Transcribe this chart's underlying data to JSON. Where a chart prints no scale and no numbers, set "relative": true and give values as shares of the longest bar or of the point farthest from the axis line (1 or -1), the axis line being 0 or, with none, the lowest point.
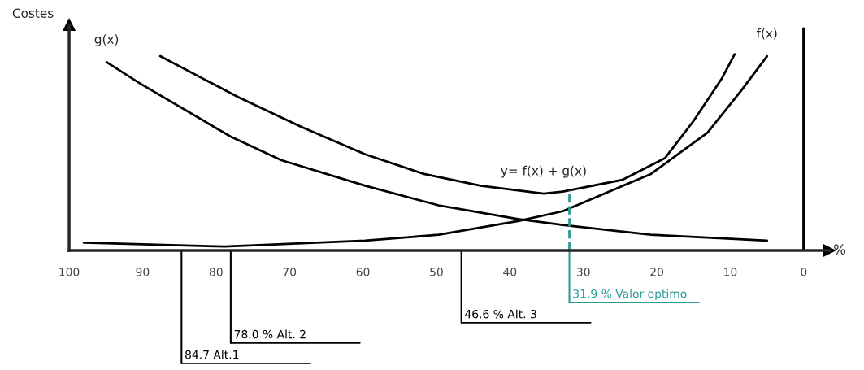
{
  "chart_data": {
    "type": "line",
    "ylabel": "Costes",
    "xlabel": "%",
    "relative": true,
    "xlim": [
      100,
      -3.5
    ],
    "xticks": [
      100,
      90,
      80,
      70,
      60,
      50,
      40,
      30,
      20,
      10,
      0
    ],
    "series": [
      {
        "color": "#000000",
        "x": [
          94.9,
          90.3,
          78.0,
          71.1,
          59.7,
          49.7,
          38.9,
          32.8,
          20.8,
          5.0
        ],
        "values": [
          0.96,
          0.85,
          0.58,
          0.46,
          0.33,
          0.23,
          0.16,
          0.13,
          0.08,
          0.05
        ]
      },
      {
        "color": "#000000",
        "x": [
          98.0,
          78.8,
          59.7,
          49.7,
          38.9,
          32.8,
          20.8,
          13.1,
          8.4,
          5.0
        ],
        "values": [
          0.04,
          0.02,
          0.05,
          0.08,
          0.15,
          0.2,
          0.39,
          0.6,
          0.82,
          0.99
        ]
      },
      {
        "color": "#000000",
        "x": [
          87.6,
          76.9,
          68.4,
          59.7,
          51.7,
          44.0,
          35.4,
          32.8,
          24.7,
          18.9,
          15.0,
          11.1,
          9.4
        ],
        "values": [
          0.99,
          0.78,
          0.63,
          0.49,
          0.39,
          0.33,
          0.29,
          0.3,
          0.36,
          0.47,
          0.66,
          0.88,
          1.0
        ]
      }
    ],
    "annotations": [
      {
        "text": "g(x)",
        "x": 94.9,
        "y": 0.96
      },
      {
        "text": "f(x)",
        "x": 5.0,
        "y": 0.99
      },
      {
        "text": "y= f(x) + g(x)",
        "x": 35.4,
        "y": 0.29
      }
    ],
    "ref_lines": [
      {
        "axis": "x",
        "value": 31.9,
        "label": "31.9 % Valor optimo",
        "color": "#2a9a94",
        "line_style": "dashed"
      },
      {
        "axis": "x",
        "value": 46.6,
        "label": "46.6 % Alt. 3",
        "color": "#000000"
      },
      {
        "axis": "x",
        "value": 78.0,
        "label": "78.0 % Alt. 2",
        "color": "#000000"
      },
      {
        "axis": "x",
        "value": 84.7,
        "label": "84.7 Alt.1",
        "color": "#000000"
      },
      {
        "axis": "x",
        "value": 0,
        "color": "#000000"
      }
    ]
  }
}
